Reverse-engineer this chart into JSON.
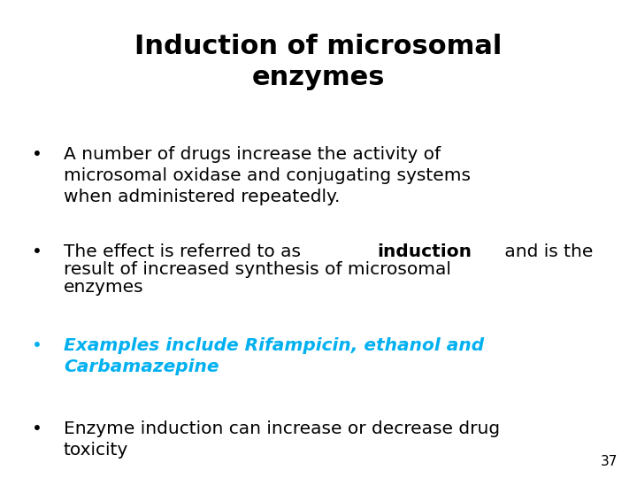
{
  "title_line1": "Induction of microsomal",
  "title_line2": "enzymes",
  "background_color": "#ffffff",
  "title_color": "#000000",
  "title_fontsize": 22,
  "bullet_fontsize": 14.5,
  "slide_number": "37",
  "slide_number_color": "#000000",
  "slide_number_fontsize": 11,
  "bullet_color": "#000000",
  "highlight_color": "#00b0f0"
}
